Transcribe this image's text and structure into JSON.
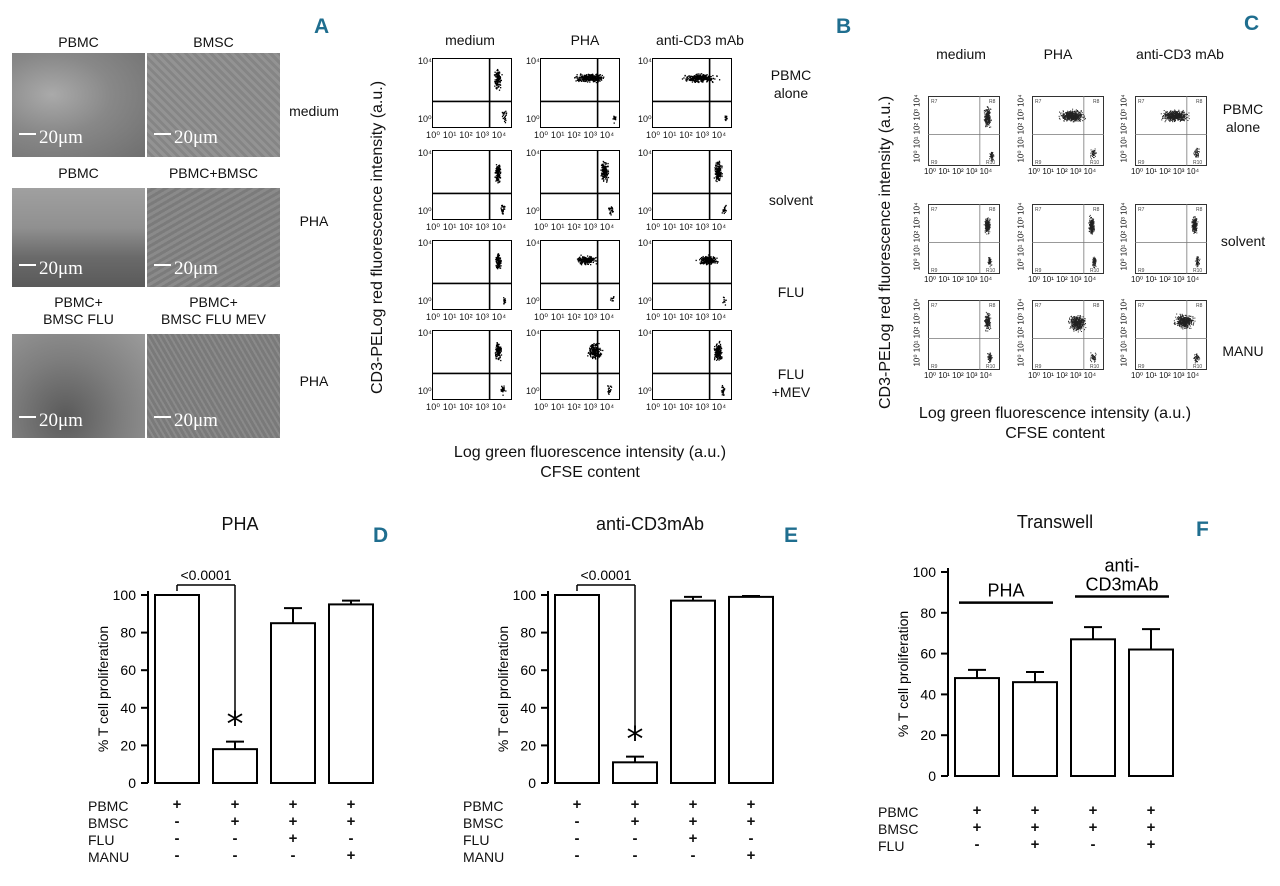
{
  "panels": {
    "A": "A",
    "B": "B",
    "C": "C",
    "D": "D",
    "E": "E",
    "F": "F"
  },
  "panelA": {
    "scale_label": "20μm",
    "images": [
      {
        "title": "PBMC"
      },
      {
        "title": "BMSC"
      },
      {
        "title": "PBMC"
      },
      {
        "title": "PBMC+BMSC"
      },
      {
        "title": "PBMC+\nBMSC FLU"
      },
      {
        "title": "PBMC+\nBMSC FLU MEV"
      }
    ],
    "row_labels": [
      "medium",
      "PHA",
      "PHA"
    ]
  },
  "panelB": {
    "col_headers": [
      "medium",
      "PHA",
      "anti-CD3 mAb"
    ],
    "row_labels": [
      "PBMC\nalone",
      "solvent",
      "FLU",
      "FLU\n+MEV"
    ],
    "y_tick_top": "10⁴",
    "y_tick_bottom": "10⁰",
    "x_ticks": "10⁰ 10¹ 10² 10³ 10⁴",
    "y_label": "CD3-PELog red fluorescence intensity (a.u.)",
    "x_label": "Log green fluorescence intensity (a.u.)",
    "x_sublabel": "CFSE content"
  },
  "panelC": {
    "col_headers": [
      "medium",
      "PHA",
      "anti-CD3 mAb"
    ],
    "row_labels": [
      "PBMC\nalone",
      "solvent",
      "MANU"
    ],
    "y_ticks": "10⁰ 10¹ 10² 10³ 10⁴",
    "x_ticks": "10⁰ 10¹ 10² 10³ 10⁴",
    "quadrants": {
      "ul": "R7",
      "ur": "R8",
      "ll": "R9",
      "lr": "R10"
    },
    "y_label": "CD3-PELog red fluorescence intensity (a.u.)",
    "x_label": "Log green fluorescence intensity (a.u.)",
    "x_sublabel": "CFSE content"
  },
  "chart_data": [
    {
      "panel": "D",
      "type": "bar",
      "title": "PHA",
      "ylabel": "% T cell proliferation",
      "ylim": [
        0,
        100
      ],
      "yticks": [
        0,
        20,
        40,
        60,
        80,
        100
      ],
      "categories": [
        "PBMC",
        "PBMC+BMSC",
        "PBMC+BMSC+FLU",
        "PBMC+BMSC+MANU"
      ],
      "values": [
        100,
        18,
        85,
        95
      ],
      "errors": [
        0,
        4,
        8,
        2
      ],
      "significance": {
        "label": "<0.0001",
        "from": 0,
        "to": 1
      },
      "star_on": 1,
      "star": "*",
      "conditions": {
        "rows": [
          "PBMC",
          "BMSC",
          "FLU",
          "MANU"
        ],
        "signs": [
          [
            "+",
            "+",
            "+",
            "+"
          ],
          [
            "-",
            "+",
            "+",
            "+"
          ],
          [
            "-",
            "-",
            "+",
            "-"
          ],
          [
            "-",
            "-",
            "-",
            "+"
          ]
        ]
      }
    },
    {
      "panel": "E",
      "type": "bar",
      "title": "anti-CD3mAb",
      "ylabel": "% T cell proliferation",
      "ylim": [
        0,
        100
      ],
      "yticks": [
        0,
        20,
        40,
        60,
        80,
        100
      ],
      "categories": [
        "PBMC",
        "PBMC+BMSC",
        "PBMC+BMSC+FLU",
        "PBMC+BMSC+MANU"
      ],
      "values": [
        100,
        11,
        97,
        99
      ],
      "errors": [
        0,
        3,
        2,
        0.5
      ],
      "significance": {
        "label": "<0.0001",
        "from": 0,
        "to": 1
      },
      "star_on": 1,
      "star": "*",
      "conditions": {
        "rows": [
          "PBMC",
          "BMSC",
          "FLU",
          "MANU"
        ],
        "signs": [
          [
            "+",
            "+",
            "+",
            "+"
          ],
          [
            "-",
            "+",
            "+",
            "+"
          ],
          [
            "-",
            "-",
            "+",
            "-"
          ],
          [
            "-",
            "-",
            "-",
            "+"
          ]
        ]
      }
    },
    {
      "panel": "F",
      "type": "bar",
      "title": "Transwell",
      "ylabel": "% T cell proliferation",
      "ylim": [
        0,
        100
      ],
      "yticks": [
        0,
        20,
        40,
        60,
        80,
        100
      ],
      "categories": [
        "PHA PBMC+BMSC",
        "PHA PBMC+BMSC+FLU",
        "anti-CD3mAb PBMC+BMSC",
        "anti-CD3mAb PBMC+BMSC+FLU"
      ],
      "values": [
        48,
        46,
        67,
        62
      ],
      "errors": [
        4,
        5,
        6,
        10
      ],
      "groups": [
        {
          "label": "PHA",
          "from": 0,
          "to": 1
        },
        {
          "label": "anti-\nCD3mAb",
          "from": 2,
          "to": 3
        }
      ],
      "conditions": {
        "rows": [
          "PBMC",
          "BMSC",
          "FLU"
        ],
        "signs": [
          [
            "+",
            "+",
            "+",
            "+"
          ],
          [
            "+",
            "+",
            "+",
            "+"
          ],
          [
            "-",
            "+",
            "-",
            "+"
          ]
        ]
      }
    }
  ]
}
